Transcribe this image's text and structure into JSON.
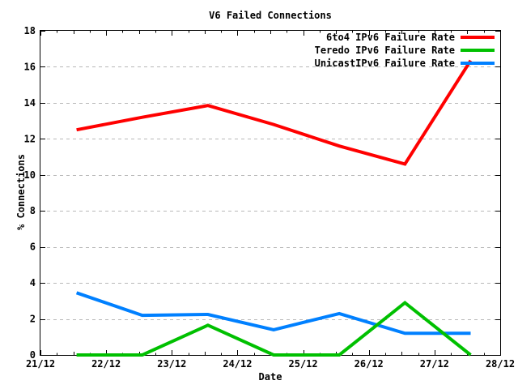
{
  "window": {
    "background": "#ffffff"
  },
  "colors": {
    "axis": "#000000",
    "grid": "#b8b8b8",
    "text": "#000000"
  },
  "chart_data": {
    "type": "line",
    "title": "V6 Failed Connections",
    "xlabel": "Date",
    "ylabel": "% Connections",
    "x_tick_labels": [
      "21/12",
      "22/12",
      "23/12",
      "24/12",
      "25/12",
      "26/12",
      "27/12",
      "28/12"
    ],
    "x_range_days": [
      0,
      7
    ],
    "y_ticks": [
      0,
      2,
      4,
      6,
      8,
      10,
      12,
      14,
      16,
      18
    ],
    "ylim": [
      0,
      18
    ],
    "grid": "horizontal-dashed",
    "legend_position": "top-right-inside",
    "x_days": [
      0.55,
      1.55,
      2.55,
      3.55,
      4.55,
      5.55,
      6.55
    ],
    "series": [
      {
        "name": "6to4 IPv6 Failure Rate",
        "color": "#ff0000",
        "values": [
          12.5,
          13.2,
          13.85,
          12.8,
          11.6,
          10.6,
          16.35
        ]
      },
      {
        "name": "Teredo IPv6 Failure Rate",
        "color": "#00c000",
        "values": [
          0,
          0,
          1.65,
          0,
          0,
          2.9,
          0
        ]
      },
      {
        "name": "UnicastIPv6 Failure Rate",
        "color": "#0080ff",
        "values": [
          3.45,
          2.2,
          2.25,
          1.4,
          2.3,
          1.2,
          1.2
        ]
      }
    ]
  }
}
